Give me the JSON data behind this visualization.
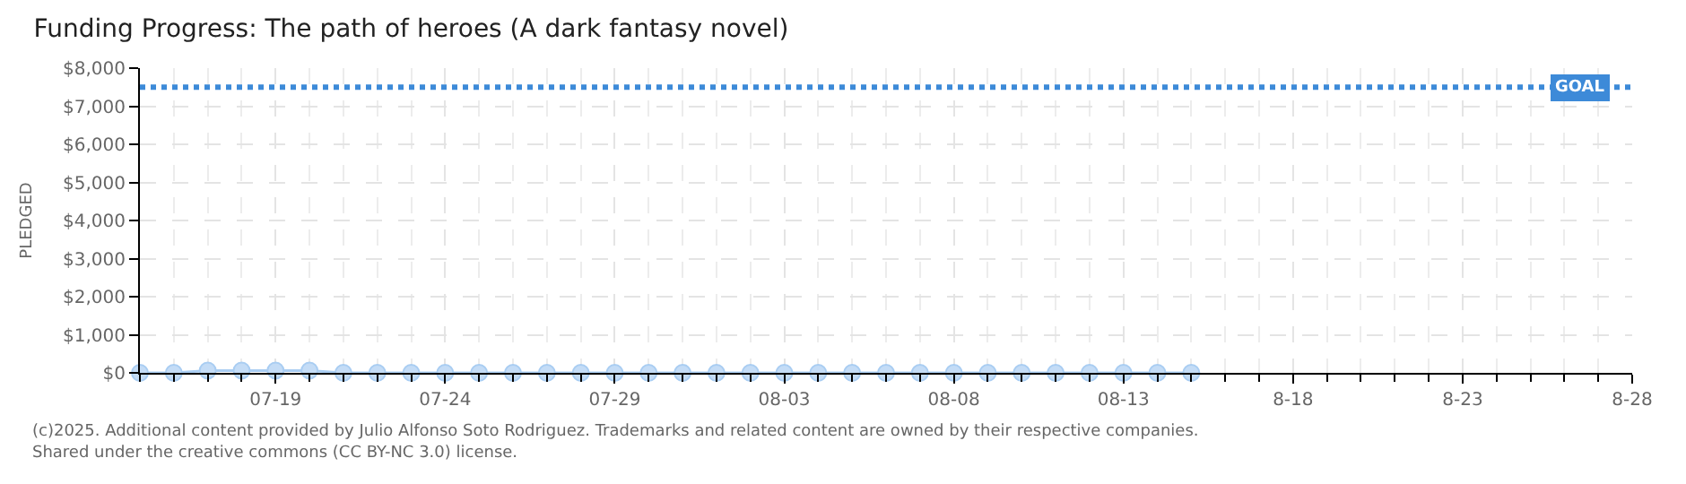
{
  "chart_data": {
    "type": "line",
    "title": "Funding Progress: The path of heroes (A dark fantasy novel)",
    "ylabel": "PLEDGED",
    "x": [
      "--07-15",
      "--07-16",
      "--07-17",
      "--07-18",
      "--07-19",
      "--07-20",
      "--07-21",
      "--07-22",
      "--07-23",
      "--07-24",
      "--07-25",
      "--07-26",
      "--07-27",
      "--07-28",
      "--07-29",
      "--07-30",
      "--07-31",
      "--08-01",
      "--08-02",
      "--08-03",
      "--08-04",
      "--08-05",
      "--08-06",
      "--08-07",
      "--08-08",
      "--08-09",
      "--08-10",
      "--08-11",
      "--08-12",
      "--08-13",
      "--08-14",
      "--08-15"
    ],
    "series": [
      {
        "color": "#a9cdf2",
        "values": [
          0,
          0,
          60,
          60,
          60,
          60,
          0,
          0,
          0,
          0,
          0,
          0,
          0,
          0,
          0,
          0,
          0,
          0,
          0,
          0,
          0,
          0,
          0,
          0,
          0,
          0,
          0,
          0,
          0,
          0,
          0,
          0
        ]
      }
    ],
    "marker": "circle",
    "line_style": "solid",
    "grid": true,
    "ylim": [
      0,
      8000
    ],
    "yticks": [
      {
        "value": 0,
        "label": "$0"
      },
      {
        "value": 1000,
        "label": "$1,000"
      },
      {
        "value": 2000,
        "label": "$2,000"
      },
      {
        "value": 3000,
        "label": "$3,000"
      },
      {
        "value": 4000,
        "label": "$4,000"
      },
      {
        "value": 5000,
        "label": "$5,000"
      },
      {
        "value": 6000,
        "label": "$6,000"
      },
      {
        "value": 7000,
        "label": "$7,000"
      },
      {
        "value": 8000,
        "label": "$8,000"
      }
    ],
    "xlim": [
      "--07-15",
      "--08-28"
    ],
    "xticks": [
      {
        "value": "--07-19",
        "label": "07-19"
      },
      {
        "value": "--07-24",
        "label": "07-24"
      },
      {
        "value": "--07-29",
        "label": "07-29"
      },
      {
        "value": "--08-03",
        "label": "08-03"
      },
      {
        "value": "--08-08",
        "label": "08-08"
      },
      {
        "value": "--08-13",
        "label": "08-13"
      },
      {
        "value": "--08-18",
        "label": "8-18"
      },
      {
        "value": "--08-23",
        "label": "8-23"
      },
      {
        "value": "--08-28",
        "label": "8-28"
      }
    ],
    "ref_lines": [
      {
        "axis": "y",
        "value": 7500,
        "label": "GOAL",
        "color": "#3d8ad8",
        "line_style": "dotted"
      }
    ],
    "annotations": [
      "(c)2025. Additional content provided by Julio Alfonso Soto Rodriguez. Trademarks and related content are owned by their respective companies.",
      "Shared under the creative commons (CC BY-NC 3.0) license."
    ]
  }
}
